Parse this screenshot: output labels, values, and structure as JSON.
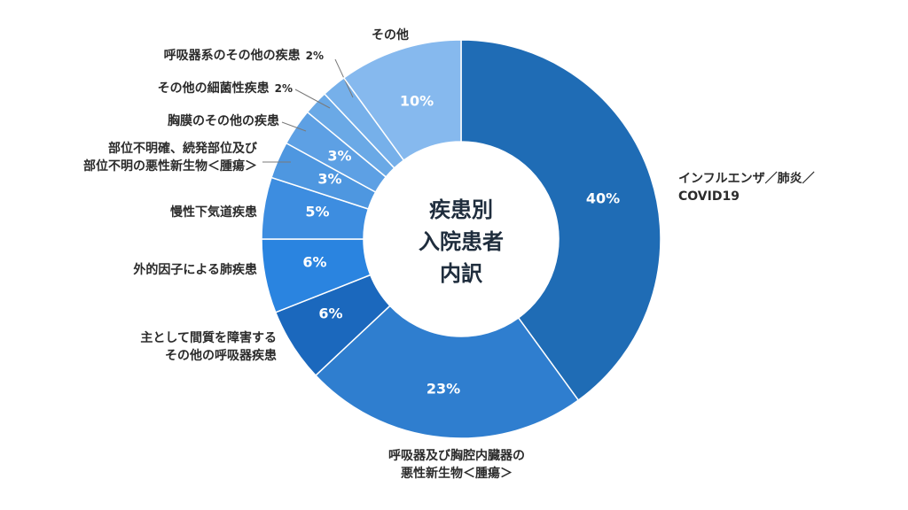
{
  "chart_data": {
    "type": "pie",
    "title": "疾患別入院患者内訳",
    "title_lines": [
      "疾患別",
      "入院患者",
      "内訳"
    ],
    "hole": true,
    "slices": [
      {
        "label_lines": [
          "インフルエンザ／肺炎／",
          "COVID19"
        ],
        "value": 40,
        "display": "40%",
        "color": "#1f6cb5",
        "pct_in_slice": true
      },
      {
        "label_lines": [
          "呼吸器及び胸腔内臓器の",
          "悪性新生物＜腫瘍＞"
        ],
        "value": 23,
        "display": "23%",
        "color": "#2f7ecf",
        "pct_in_slice": true
      },
      {
        "label_lines": [
          "主として間質を障害する",
          "その他の呼吸器疾患"
        ],
        "value": 6,
        "display": "6%",
        "color": "#1b68bd",
        "pct_in_slice": true
      },
      {
        "label_lines": [
          "外的因子による肺疾患"
        ],
        "value": 6,
        "display": "6%",
        "color": "#2a84e0",
        "pct_in_slice": true
      },
      {
        "label_lines": [
          "慢性下気道疾患"
        ],
        "value": 5,
        "display": "5%",
        "color": "#3d8de0",
        "pct_in_slice": true
      },
      {
        "label_lines": [
          "部位不明確、続発部位及び",
          "部位不明の悪性新生物＜腫瘍＞"
        ],
        "value": 3,
        "display": "3%",
        "color": "#4e97e0",
        "pct_in_slice": true
      },
      {
        "label_lines": [
          "胸膜のその他の疾患"
        ],
        "value": 3,
        "display": "3%",
        "color": "#5da0e4",
        "pct_in_slice": true
      },
      {
        "label_lines": [
          "その他の細菌性疾患"
        ],
        "value": 2,
        "display": "2%",
        "color": "#6aa9e6",
        "pct_in_slice": false
      },
      {
        "label_lines": [
          "呼吸器系のその他の疾患"
        ],
        "value": 2,
        "display": "2%",
        "color": "#76b0ea",
        "pct_in_slice": false
      },
      {
        "label_lines": [
          "その他"
        ],
        "value": 10,
        "display": "10%",
        "color": "#86b9ee",
        "pct_in_slice": true
      }
    ]
  }
}
